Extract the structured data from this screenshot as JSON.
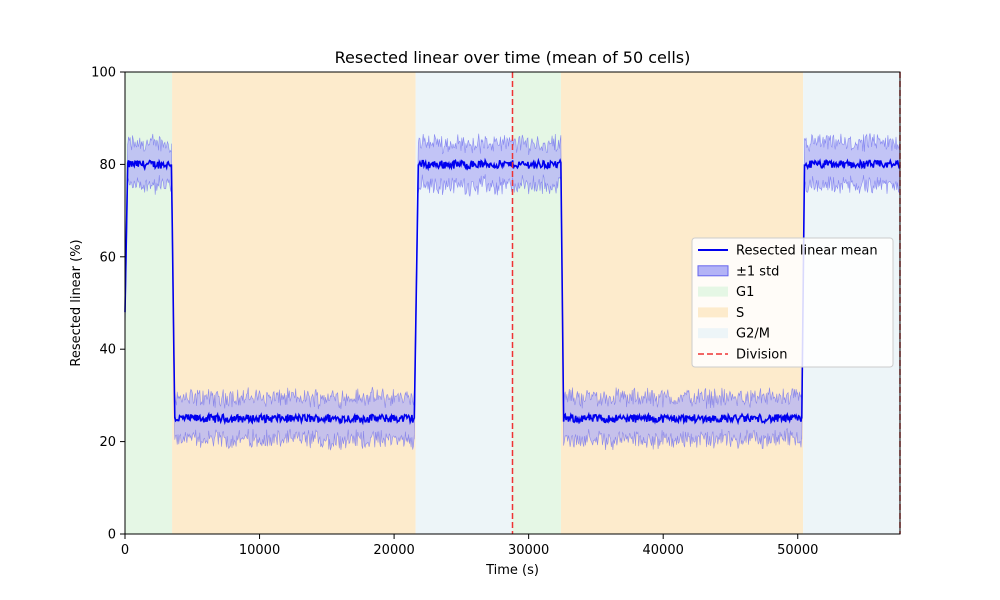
{
  "chart_data": {
    "type": "line",
    "title": "Resected linear over time (mean of 50 cells)",
    "xlabel": "Time (s)",
    "ylabel": "Resected linear (%)",
    "xlim": [
      0,
      57600
    ],
    "ylim": [
      0,
      100
    ],
    "xticks": [
      0,
      10000,
      20000,
      30000,
      40000,
      50000
    ],
    "xtick_labels": [
      "0",
      "10000",
      "20000",
      "30000",
      "40000",
      "50000"
    ],
    "yticks": [
      0,
      20,
      40,
      60,
      80,
      100
    ],
    "ytick_labels": [
      "0",
      "20",
      "40",
      "60",
      "80",
      "100"
    ],
    "grid": false,
    "legend_position": "center-right",
    "legend": [
      {
        "label": "Resected linear mean",
        "kind": "line",
        "color": "#0000ee"
      },
      {
        "label": "±1 std",
        "kind": "patch",
        "color": "#b3b3f6",
        "edge": "#6666ee"
      },
      {
        "label": "G1",
        "kind": "patch",
        "color": "#e5f7e5"
      },
      {
        "label": "S",
        "kind": "patch",
        "color": "#fdebcc"
      },
      {
        "label": "G2/M",
        "kind": "patch",
        "color": "#edf5f8"
      },
      {
        "label": "Division",
        "kind": "dashed",
        "color": "#ee3333"
      }
    ],
    "phases": [
      {
        "phase": "G1",
        "start": 0,
        "end": 3500
      },
      {
        "phase": "S",
        "start": 3500,
        "end": 21600
      },
      {
        "phase": "G2/M",
        "start": 21600,
        "end": 28800
      },
      {
        "phase": "G1",
        "start": 28800,
        "end": 32400
      },
      {
        "phase": "S",
        "start": 32400,
        "end": 50400
      },
      {
        "phase": "G2/M",
        "start": 50400,
        "end": 57600
      }
    ],
    "divisions": [
      28800,
      57600
    ],
    "series": [
      {
        "name": "Resected linear mean",
        "segments": [
          {
            "x": [
              0,
              200
            ],
            "y": [
              48,
              80
            ]
          },
          {
            "x": [
              200,
              3450
            ],
            "y": [
              80,
              80
            ]
          },
          {
            "x": [
              3450,
              3700
            ],
            "y": [
              80,
              25
            ]
          },
          {
            "x": [
              3700,
              21500
            ],
            "y": [
              25,
              25
            ]
          },
          {
            "x": [
              21500,
              21800
            ],
            "y": [
              25,
              80
            ]
          },
          {
            "x": [
              21800,
              32400
            ],
            "y": [
              80,
              80
            ]
          },
          {
            "x": [
              32400,
              32600
            ],
            "y": [
              80,
              25
            ]
          },
          {
            "x": [
              32600,
              50300
            ],
            "y": [
              25,
              25
            ]
          },
          {
            "x": [
              50300,
              50500
            ],
            "y": [
              25,
              80
            ]
          },
          {
            "x": [
              50500,
              57600
            ],
            "y": [
              80,
              80
            ]
          }
        ],
        "std": 4.5
      }
    ]
  },
  "colors": {
    "mean": "#0000ee",
    "band_fill": "#b3b3f6",
    "band_edge": "#6666ee",
    "division": "#ee3333",
    "G1": "#e5f7e5",
    "S": "#fdebcc",
    "G2/M": "#edf5f8"
  }
}
